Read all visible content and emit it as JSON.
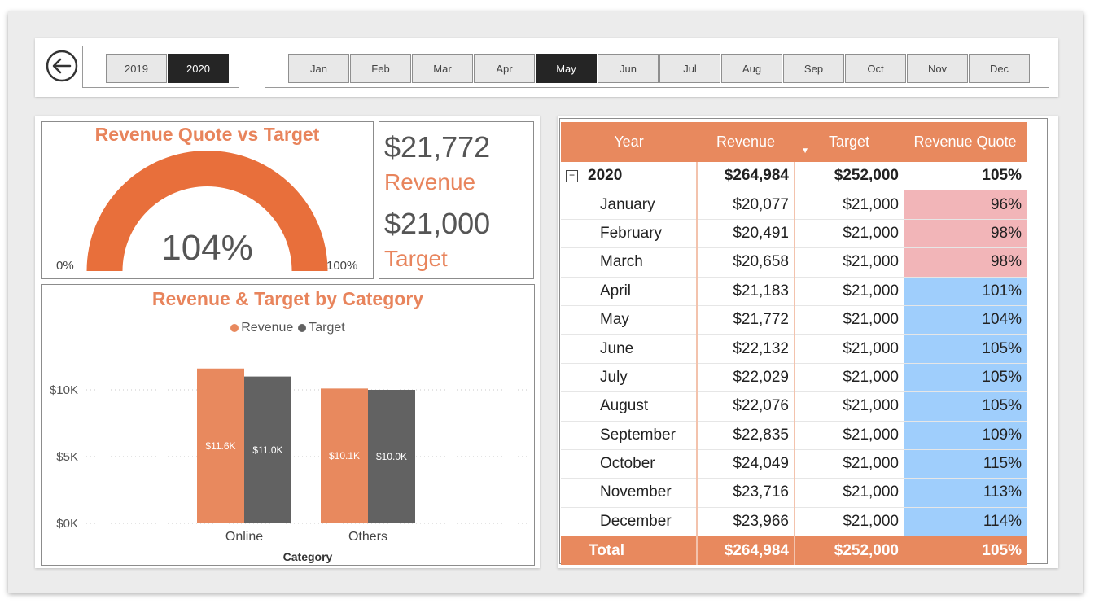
{
  "colors": {
    "accent": "#e8895e",
    "dark": "#252525",
    "low": "#f2b5b8",
    "high": "#9fcefc",
    "target": "#626262",
    "revenue": "#e8895e"
  },
  "years": [
    {
      "label": "2019",
      "selected": false
    },
    {
      "label": "2020",
      "selected": true
    }
  ],
  "months": [
    {
      "label": "Jan",
      "selected": false
    },
    {
      "label": "Feb",
      "selected": false
    },
    {
      "label": "Mar",
      "selected": false
    },
    {
      "label": "Apr",
      "selected": false
    },
    {
      "label": "May",
      "selected": true
    },
    {
      "label": "Jun",
      "selected": false
    },
    {
      "label": "Jul",
      "selected": false
    },
    {
      "label": "Aug",
      "selected": false
    },
    {
      "label": "Sep",
      "selected": false
    },
    {
      "label": "Oct",
      "selected": false
    },
    {
      "label": "Nov",
      "selected": false
    },
    {
      "label": "Dec",
      "selected": false
    }
  ],
  "gauge": {
    "title": "Revenue Quote vs Target",
    "value": "104%",
    "min": "0%",
    "max": "100%",
    "fill_fraction": 1.0
  },
  "kpi": {
    "revenue_value": "$21,772",
    "revenue_label": "Revenue",
    "target_value": "$21,000",
    "target_label": "Target"
  },
  "chart": {
    "title": "Revenue & Target by Category",
    "legend_revenue": "Revenue",
    "legend_target": "Target"
  },
  "chart_data": {
    "type": "bar",
    "title": "Revenue & Target by Category",
    "xlabel": "Category",
    "ylabel": "",
    "categories": [
      "Online",
      "Others"
    ],
    "series": [
      {
        "name": "Revenue",
        "values": [
          11600,
          10100
        ],
        "labels": [
          "$11.6K",
          "$10.1K"
        ]
      },
      {
        "name": "Target",
        "values": [
          11000,
          10000
        ],
        "labels": [
          "$11.0K",
          "$10.0K"
        ]
      }
    ],
    "yticks": [
      {
        "value": 0,
        "label": "$0K"
      },
      {
        "value": 5000,
        "label": "$5K"
      },
      {
        "value": 10000,
        "label": "$10K"
      }
    ],
    "ylim": [
      0,
      11600
    ],
    "grid": true,
    "legend": "top-center"
  },
  "table": {
    "headers": {
      "year": "Year",
      "revenue": "Revenue",
      "target": "Target",
      "quote": "Revenue Quote"
    },
    "expand_symbol": "−",
    "year_row": {
      "year": "2020",
      "revenue": "$264,984",
      "target": "$252,000",
      "quote": "105%"
    },
    "rows": [
      {
        "month": "January",
        "revenue": "$20,077",
        "target": "$21,000",
        "quote": "96%",
        "status": "low"
      },
      {
        "month": "February",
        "revenue": "$20,491",
        "target": "$21,000",
        "quote": "98%",
        "status": "low"
      },
      {
        "month": "March",
        "revenue": "$20,658",
        "target": "$21,000",
        "quote": "98%",
        "status": "low"
      },
      {
        "month": "April",
        "revenue": "$21,183",
        "target": "$21,000",
        "quote": "101%",
        "status": "high"
      },
      {
        "month": "May",
        "revenue": "$21,772",
        "target": "$21,000",
        "quote": "104%",
        "status": "high"
      },
      {
        "month": "June",
        "revenue": "$22,132",
        "target": "$21,000",
        "quote": "105%",
        "status": "high"
      },
      {
        "month": "July",
        "revenue": "$22,029",
        "target": "$21,000",
        "quote": "105%",
        "status": "high"
      },
      {
        "month": "August",
        "revenue": "$22,076",
        "target": "$21,000",
        "quote": "105%",
        "status": "high"
      },
      {
        "month": "September",
        "revenue": "$22,835",
        "target": "$21,000",
        "quote": "109%",
        "status": "high"
      },
      {
        "month": "October",
        "revenue": "$24,049",
        "target": "$21,000",
        "quote": "115%",
        "status": "high"
      },
      {
        "month": "November",
        "revenue": "$23,716",
        "target": "$21,000",
        "quote": "113%",
        "status": "high"
      },
      {
        "month": "December",
        "revenue": "$23,966",
        "target": "$21,000",
        "quote": "114%",
        "status": "high"
      }
    ],
    "total": {
      "label": "Total",
      "revenue": "$264,984",
      "target": "$252,000",
      "quote": "105%"
    }
  }
}
